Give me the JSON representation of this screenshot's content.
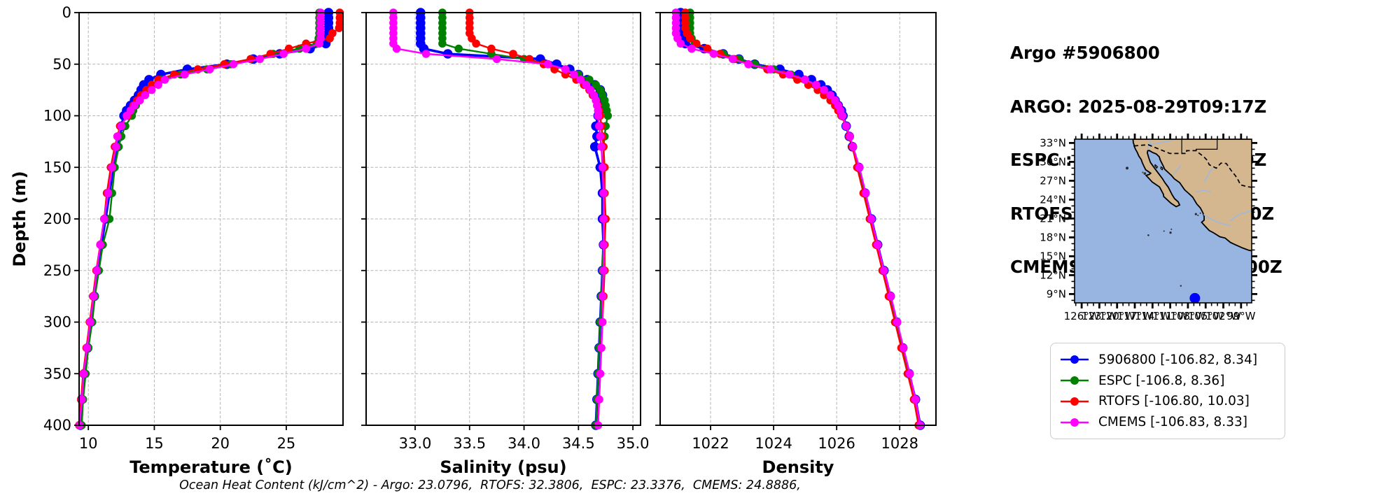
{
  "header": {
    "title": "Argo #5906800",
    "lines": [
      "ARGO: 2025-08-29T09:17Z",
      "ESPC : 2025-08-29T09:00Z",
      "RTOFS: 2025-08-29T12:00Z",
      "CMEMS: 2025-08-29T12:00Z"
    ]
  },
  "footer": {
    "ohc_text": "Ocean Heat Content (kJ/cm^2) - Argo: 23.0796,  RTOFS: 32.3806,  ESPC: 23.3376,  CMEMS: 24.8886,"
  },
  "colors": {
    "argo": "#0000ff",
    "espc": "#008000",
    "rtofs": "#ff0000",
    "cmems": "#ff00ff",
    "grid": "#b4b4b4",
    "ocean": "#98b5e2",
    "land": "#d4b78f",
    "river": "#9cb9e2"
  },
  "legend": {
    "items": [
      {
        "label": "5906800 [-106.82, 8.34]",
        "color": "#0000ff"
      },
      {
        "label": "ESPC [-106.8, 8.36]",
        "color": "#008000"
      },
      {
        "label": "RTOFS [-106.80, 10.03]",
        "color": "#ff0000"
      },
      {
        "label": "CMEMS [-106.83, 8.33]",
        "color": "#ff00ff"
      }
    ]
  },
  "map": {
    "extent": {
      "lon_min": -127.2,
      "lon_max": -97.2,
      "lat_min": 7.6,
      "lat_max": 33.6
    },
    "lat_ticks": [
      {
        "v": 33,
        "label": "33°N"
      },
      {
        "v": 30,
        "label": "30°N"
      },
      {
        "v": 27,
        "label": "27°N"
      },
      {
        "v": 24,
        "label": "24°N"
      },
      {
        "v": 21,
        "label": "21°N"
      },
      {
        "v": 18,
        "label": "18°N"
      },
      {
        "v": 15,
        "label": "15°N"
      },
      {
        "v": 12,
        "label": "12°N"
      },
      {
        "v": 9,
        "label": "9°N"
      }
    ],
    "lon_ticks": [
      {
        "v": -126,
        "label": "126°W"
      },
      {
        "v": -123,
        "label": "123°W"
      },
      {
        "v": -120,
        "label": "120°W"
      },
      {
        "v": -117,
        "label": "117°W"
      },
      {
        "v": -114,
        "label": "114°W"
      },
      {
        "v": -111,
        "label": "111°W"
      },
      {
        "v": -108,
        "label": "108°W"
      },
      {
        "v": -105,
        "label": "105°W"
      },
      {
        "v": -102,
        "label": "102°W"
      },
      {
        "v": -99,
        "label": "99°W"
      }
    ],
    "float_marker": {
      "lon": -106.82,
      "lat": 8.34,
      "color": "#0000ff"
    }
  },
  "chart_data": [
    {
      "id": "temperature",
      "type": "line",
      "xlabel": "Temperature (˚C)",
      "ylabel": "Depth (m)",
      "xlim": [
        9.3,
        29.3
      ],
      "xticks": [
        10,
        15,
        20,
        25
      ],
      "xticklabels": [
        "10",
        "15",
        "20",
        "25"
      ],
      "ylim": [
        0,
        400
      ],
      "yticks": [
        0,
        50,
        100,
        150,
        200,
        250,
        300,
        350,
        400
      ],
      "yticklabels": [
        "0",
        "50",
        "100",
        "150",
        "200",
        "250",
        "300",
        "350",
        "400"
      ],
      "show_ytick_labels": true,
      "depths": [
        0,
        5,
        10,
        15,
        20,
        25,
        30,
        35,
        40,
        45,
        50,
        55,
        60,
        65,
        70,
        75,
        80,
        85,
        90,
        95,
        100,
        110,
        120,
        130,
        150,
        175,
        200,
        225,
        250,
        275,
        300,
        325,
        350,
        375,
        400
      ],
      "series": [
        {
          "name": "5906800",
          "color": "#0000ff",
          "values": [
            28.2,
            28.2,
            28.2,
            28.2,
            28.2,
            28.15,
            28.0,
            26.8,
            24.5,
            22.5,
            20.5,
            17.5,
            15.5,
            14.6,
            14.2,
            14.0,
            13.8,
            13.5,
            13.2,
            12.9,
            12.7,
            12.5,
            12.4,
            12.2,
            11.9,
            11.6,
            11.3,
            11.0,
            10.7,
            10.45,
            10.2,
            9.95,
            9.7,
            9.5,
            9.4
          ]
        },
        {
          "name": "ESPC",
          "color": "#008000",
          "values": [
            27.5,
            27.5,
            27.5,
            27.5,
            27.5,
            27.45,
            27.3,
            26.0,
            24.0,
            22.3,
            20.8,
            19.0,
            17.0,
            15.5,
            14.8,
            14.5,
            14.2,
            13.9,
            13.6,
            13.4,
            13.3,
            12.8,
            12.5,
            12.3,
            12.0,
            11.8,
            11.6,
            11.1,
            10.8,
            10.5,
            10.3,
            10.0,
            9.8,
            9.6,
            9.5
          ]
        },
        {
          "name": "RTOFS",
          "color": "#ff0000",
          "values": [
            29.05,
            29.05,
            29.05,
            29.0,
            28.5,
            28.3,
            26.5,
            25.2,
            23.8,
            22.3,
            20.3,
            18.3,
            16.5,
            15.3,
            14.8,
            14.4,
            14.0,
            13.7,
            13.4,
            13.2,
            13.0,
            12.4,
            12.2,
            12.0,
            11.7,
            11.4,
            11.2,
            10.9,
            10.6,
            10.35,
            10.1,
            9.85,
            9.6,
            9.45,
            9.3
          ]
        },
        {
          "name": "CMEMS",
          "color": "#ff00ff",
          "values": [
            27.6,
            27.6,
            27.6,
            27.6,
            27.6,
            27.6,
            27.5,
            26.5,
            24.8,
            23.0,
            21.0,
            19.2,
            17.3,
            15.8,
            15.3,
            14.8,
            14.3,
            13.9,
            13.5,
            13.2,
            12.9,
            12.5,
            12.2,
            12.1,
            11.8,
            11.5,
            11.2,
            10.9,
            10.65,
            10.4,
            10.15,
            9.9,
            9.65,
            9.5,
            9.35
          ]
        }
      ]
    },
    {
      "id": "salinity",
      "type": "line",
      "xlabel": "Salinity (psu)",
      "ylabel": null,
      "xlim": [
        32.55,
        35.07
      ],
      "xticks": [
        33.0,
        33.5,
        34.0,
        34.5,
        35.0
      ],
      "xticklabels": [
        "33.0",
        "33.5",
        "34.0",
        "34.5",
        "35.0"
      ],
      "ylim": [
        0,
        400
      ],
      "yticks": [
        0,
        50,
        100,
        150,
        200,
        250,
        300,
        350,
        400
      ],
      "yticklabels": [
        "0",
        "50",
        "100",
        "150",
        "200",
        "250",
        "300",
        "350",
        "400"
      ],
      "show_ytick_labels": false,
      "depths": [
        0,
        5,
        10,
        15,
        20,
        25,
        30,
        35,
        40,
        45,
        50,
        55,
        60,
        65,
        70,
        75,
        80,
        85,
        90,
        95,
        100,
        110,
        120,
        130,
        150,
        175,
        200,
        225,
        250,
        275,
        300,
        325,
        350,
        375,
        400
      ],
      "series": [
        {
          "name": "5906800",
          "color": "#0000ff",
          "values": [
            33.05,
            33.05,
            33.05,
            33.05,
            33.05,
            33.05,
            33.05,
            33.08,
            33.3,
            34.15,
            34.3,
            34.42,
            34.5,
            34.58,
            34.65,
            34.7,
            34.72,
            34.73,
            34.72,
            34.7,
            34.68,
            34.66,
            34.67,
            34.65,
            34.7,
            34.72,
            34.72,
            34.73,
            34.72,
            34.71,
            34.7,
            34.69,
            34.68,
            34.67,
            34.66
          ]
        },
        {
          "name": "ESPC",
          "color": "#008000",
          "values": [
            33.25,
            33.25,
            33.25,
            33.25,
            33.25,
            33.25,
            33.25,
            33.4,
            33.7,
            34.0,
            34.22,
            34.38,
            34.5,
            34.6,
            34.66,
            34.7,
            34.72,
            34.74,
            34.75,
            34.76,
            34.77,
            34.75,
            34.74,
            34.73,
            34.73,
            34.73,
            34.73,
            34.73,
            34.72,
            34.71,
            34.7,
            34.69,
            34.68,
            34.67,
            34.66
          ]
        },
        {
          "name": "RTOFS",
          "color": "#ff0000",
          "values": [
            33.5,
            33.5,
            33.5,
            33.5,
            33.5,
            33.52,
            33.56,
            33.7,
            33.9,
            34.05,
            34.18,
            34.28,
            34.38,
            34.48,
            34.55,
            34.6,
            34.63,
            34.66,
            34.68,
            34.69,
            34.7,
            34.71,
            34.72,
            34.73,
            34.74,
            34.74,
            34.75,
            34.74,
            34.74,
            34.73,
            34.72,
            34.71,
            34.7,
            34.69,
            34.68
          ]
        },
        {
          "name": "CMEMS",
          "color": "#ff00ff",
          "values": [
            32.8,
            32.8,
            32.8,
            32.8,
            32.8,
            32.8,
            32.8,
            32.83,
            33.1,
            33.75,
            34.22,
            34.38,
            34.46,
            34.52,
            34.57,
            34.61,
            34.64,
            34.66,
            34.67,
            34.68,
            34.68,
            34.69,
            34.7,
            34.71,
            34.72,
            34.73,
            34.73,
            34.73,
            34.73,
            34.72,
            34.72,
            34.71,
            34.7,
            34.69,
            34.68
          ]
        }
      ]
    },
    {
      "id": "density",
      "type": "line",
      "xlabel": "Density",
      "ylabel": null,
      "xlim": [
        1020.4,
        1029.15
      ],
      "xticks": [
        1022,
        1024,
        1026,
        1028
      ],
      "xticklabels": [
        "1022",
        "1024",
        "1026",
        "1028"
      ],
      "ylim": [
        0,
        400
      ],
      "yticks": [
        0,
        50,
        100,
        150,
        200,
        250,
        300,
        350,
        400
      ],
      "yticklabels": [
        "0",
        "50",
        "100",
        "150",
        "200",
        "250",
        "300",
        "350",
        "400"
      ],
      "show_ytick_labels": false,
      "depths": [
        0,
        5,
        10,
        15,
        20,
        25,
        30,
        35,
        40,
        45,
        50,
        55,
        60,
        65,
        70,
        75,
        80,
        85,
        90,
        95,
        100,
        110,
        120,
        130,
        150,
        175,
        200,
        225,
        250,
        275,
        300,
        325,
        350,
        375,
        400
      ],
      "series": [
        {
          "name": "5906800",
          "color": "#0000ff",
          "values": [
            1021.05,
            1021.05,
            1021.05,
            1021.05,
            1021.05,
            1021.1,
            1021.2,
            1021.8,
            1022.4,
            1022.9,
            1023.4,
            1024.2,
            1024.8,
            1025.2,
            1025.5,
            1025.7,
            1025.85,
            1025.95,
            1026.05,
            1026.15,
            1026.2,
            1026.3,
            1026.4,
            1026.5,
            1026.7,
            1026.9,
            1027.1,
            1027.3,
            1027.5,
            1027.7,
            1027.9,
            1028.1,
            1028.3,
            1028.5,
            1028.65
          ]
        },
        {
          "name": "ESPC",
          "color": "#008000",
          "values": [
            1021.35,
            1021.35,
            1021.35,
            1021.35,
            1021.35,
            1021.4,
            1021.5,
            1021.9,
            1022.4,
            1022.9,
            1023.4,
            1024.0,
            1024.55,
            1025.0,
            1025.35,
            1025.6,
            1025.8,
            1025.92,
            1026.02,
            1026.1,
            1026.15,
            1026.3,
            1026.4,
            1026.5,
            1026.7,
            1026.9,
            1027.05,
            1027.3,
            1027.5,
            1027.7,
            1027.9,
            1028.1,
            1028.3,
            1028.45,
            1028.6
          ]
        },
        {
          "name": "RTOFS",
          "color": "#ff0000",
          "values": [
            1021.2,
            1021.2,
            1021.2,
            1021.2,
            1021.25,
            1021.35,
            1021.55,
            1021.9,
            1022.3,
            1022.75,
            1023.2,
            1023.8,
            1024.3,
            1024.75,
            1025.1,
            1025.4,
            1025.6,
            1025.8,
            1025.95,
            1026.05,
            1026.15,
            1026.3,
            1026.4,
            1026.5,
            1026.65,
            1026.85,
            1027.05,
            1027.25,
            1027.45,
            1027.65,
            1027.85,
            1028.05,
            1028.25,
            1028.45,
            1028.6
          ]
        },
        {
          "name": "CMEMS",
          "color": "#ff00ff",
          "values": [
            1020.9,
            1020.9,
            1020.9,
            1020.9,
            1020.9,
            1020.95,
            1021.05,
            1021.4,
            1022.1,
            1022.7,
            1023.2,
            1023.9,
            1024.5,
            1025.0,
            1025.35,
            1025.6,
            1025.8,
            1025.95,
            1026.05,
            1026.12,
            1026.18,
            1026.3,
            1026.42,
            1026.52,
            1026.72,
            1026.92,
            1027.1,
            1027.3,
            1027.5,
            1027.72,
            1027.92,
            1028.12,
            1028.32,
            1028.5,
            1028.65
          ]
        }
      ]
    }
  ]
}
